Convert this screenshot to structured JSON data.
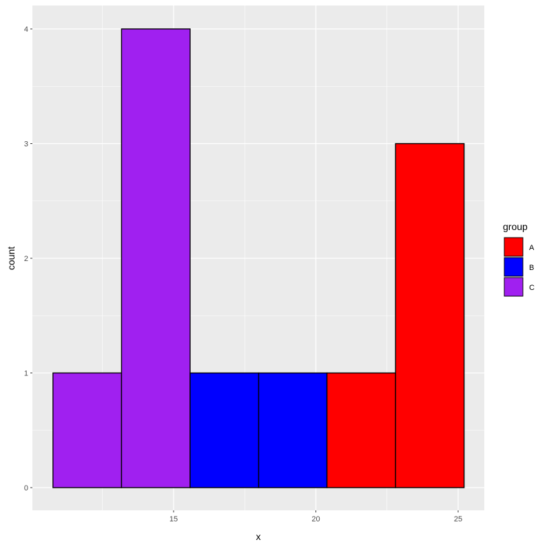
{
  "chart_data": {
    "type": "bar",
    "subtype": "histogram",
    "title": "",
    "xlabel": "x",
    "ylabel": "count",
    "xlim": [
      10.2,
      26.1
    ],
    "ylim": [
      -0.2,
      4.2
    ],
    "x_ticks": [
      15,
      20,
      25
    ],
    "x_tick_labels": [
      "15",
      "20",
      "25"
    ],
    "y_ticks": [
      0,
      1,
      2,
      3,
      4
    ],
    "y_tick_labels": [
      "0",
      "1",
      "2",
      "3",
      "4"
    ],
    "grid": true,
    "legend_position": "right",
    "legend": {
      "title": "group",
      "entries": [
        {
          "label": "A",
          "color": "#ff0000"
        },
        {
          "label": "B",
          "color": "#0000ff"
        },
        {
          "label": "C",
          "color": "#a020f0"
        }
      ]
    },
    "bins": [
      {
        "xmin": 10.76,
        "xmax": 13.17,
        "count": 1,
        "group": "C",
        "color": "#a020f0"
      },
      {
        "xmin": 13.17,
        "xmax": 15.58,
        "count": 4,
        "group": "C",
        "color": "#a020f0"
      },
      {
        "xmin": 15.58,
        "xmax": 17.99,
        "count": 1,
        "group": "B",
        "color": "#0000ff"
      },
      {
        "xmin": 17.99,
        "xmax": 20.39,
        "count": 1,
        "group": "B",
        "color": "#0000ff"
      },
      {
        "xmin": 20.39,
        "xmax": 22.8,
        "count": 1,
        "group": "A",
        "color": "#ff0000"
      },
      {
        "xmin": 22.8,
        "xmax": 25.21,
        "count": 3,
        "group": "A",
        "color": "#ff0000"
      }
    ],
    "categories": [
      "10.8-13.2",
      "13.2-15.6",
      "15.6-18.0",
      "18.0-20.4",
      "20.4-22.8",
      "22.8-25.2"
    ],
    "values": [
      1,
      4,
      1,
      1,
      1,
      3
    ]
  },
  "style": {
    "panel_bg": "#ebebeb",
    "grid_major": "#ffffff",
    "bar_outline": "#000000"
  }
}
